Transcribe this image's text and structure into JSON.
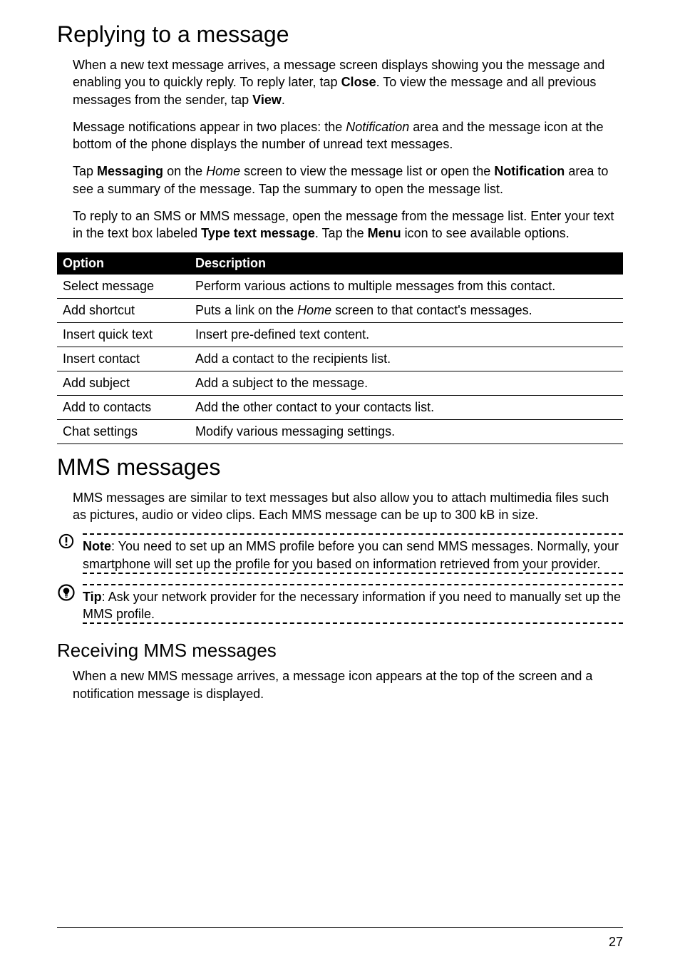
{
  "section_replying": {
    "heading": "Replying to a message",
    "paragraphs": [
      {
        "parts": [
          {
            "t": "When a new text message arrives, a message screen displays showing you the message and enabling you to quickly reply. To reply later, tap "
          },
          {
            "t": "Close",
            "bold": true
          },
          {
            "t": ". To view the message and all previous messages from the sender, tap "
          },
          {
            "t": "View",
            "bold": true
          },
          {
            "t": "."
          }
        ]
      },
      {
        "parts": [
          {
            "t": "Message notifications appear in two places: the "
          },
          {
            "t": "Notification",
            "italic": true
          },
          {
            "t": " area and the message icon at the bottom of the phone displays the number of unread text messages."
          }
        ]
      },
      {
        "parts": [
          {
            "t": "Tap "
          },
          {
            "t": "Messaging",
            "bold": true
          },
          {
            "t": " on the "
          },
          {
            "t": "Home",
            "italic": true
          },
          {
            "t": " screen to view the message list or open the "
          },
          {
            "t": "Notification",
            "bold": true
          },
          {
            "t": " area to see a summary of the message. Tap the summary to open the message list."
          }
        ]
      },
      {
        "parts": [
          {
            "t": "To reply to an SMS or MMS message, open the message from the message list. Enter your text in the text box labeled "
          },
          {
            "t": "Type text message",
            "bold": true
          },
          {
            "t": ". Tap the "
          },
          {
            "t": "Menu",
            "bold": true
          },
          {
            "t": " icon to see available options."
          }
        ]
      }
    ]
  },
  "options_table": {
    "header": {
      "col1": "Option",
      "col2": "Description"
    },
    "rows": [
      {
        "option": "Select message",
        "desc_parts": [
          {
            "t": "Perform various actions to multiple messages from this contact."
          }
        ]
      },
      {
        "option": "Add shortcut",
        "desc_parts": [
          {
            "t": "Puts a link on the "
          },
          {
            "t": "Home",
            "italic": true
          },
          {
            "t": " screen to that contact's messages."
          }
        ]
      },
      {
        "option": "Insert quick text",
        "desc_parts": [
          {
            "t": "Insert pre-defined text content."
          }
        ]
      },
      {
        "option": "Insert contact",
        "desc_parts": [
          {
            "t": "Add a contact to the recipients list."
          }
        ]
      },
      {
        "option": "Add subject",
        "desc_parts": [
          {
            "t": "Add a subject to the message."
          }
        ]
      },
      {
        "option": "Add to contacts",
        "desc_parts": [
          {
            "t": "Add the other contact to your contacts list."
          }
        ]
      },
      {
        "option": "Chat settings",
        "desc_parts": [
          {
            "t": "Modify various messaging settings."
          }
        ]
      }
    ]
  },
  "section_mms": {
    "heading": "MMS messages",
    "paragraph": {
      "parts": [
        {
          "t": "MMS messages are similar to text messages but also allow you to attach multimedia files such as pictures, audio or video clips. Each MMS message can be up to 300 kB in size."
        }
      ]
    }
  },
  "note_callout": {
    "label": "Note",
    "text": ": You need to set up an MMS profile before you can send MMS messages. Normally, your smartphone will set up the profile for you based on information retrieved from your provider."
  },
  "tip_callout": {
    "label": "Tip",
    "text": ": Ask your network provider for the necessary information if you need to manually set up the MMS profile."
  },
  "section_receiving": {
    "heading": "Receiving MMS messages",
    "paragraph": {
      "parts": [
        {
          "t": "When a new MMS message arrives, a message icon appears at the top of the screen and a notification message is displayed."
        }
      ]
    }
  },
  "footer": {
    "page_number": "27"
  },
  "colors": {
    "text": "#000000",
    "background": "#ffffff",
    "table_header_bg": "#000000",
    "table_header_fg": "#ffffff"
  }
}
